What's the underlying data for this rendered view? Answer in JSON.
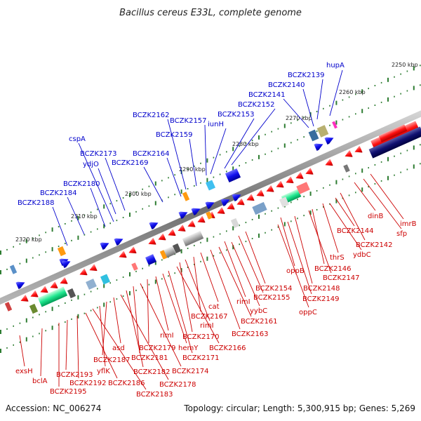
{
  "title": "Bacillus cereus E33L, complete genome",
  "footer": {
    "accession": "Accession: NC_006274",
    "stats": "Topology: circular; Length: 5,300,915 bp; Genes: 5,269"
  },
  "colors": {
    "backbone": "#8a8a8a",
    "forward_label": "#0000cc",
    "reverse_label": "#cc0000",
    "tick": "#2e7d32"
  },
  "scale_labels": [
    "2250 kbp",
    "2260 kbp",
    "2270 kbp",
    "2280 kbp",
    "2290 kbp",
    "2300 kbp",
    "2310 kbp",
    "2320 kbp"
  ],
  "forward_genes": [
    "hupA",
    "BCZK2139",
    "BCZK2140",
    "BCZK2141",
    "BCZK2152",
    "BCZK2153",
    "iunH",
    "BCZK2157",
    "BCZK2159",
    "BCZK2162",
    "BCZK2164",
    "BCZK2169",
    "BCZK2173",
    "ydjO",
    "cspA",
    "BCZK2180",
    "BCZK2184",
    "BCZK2188"
  ],
  "reverse_genes": [
    "imrB",
    "sfp",
    "dinB",
    "BCZK2142",
    "BCZK2144",
    "ydbC",
    "thrS",
    "BCZK2146",
    "BCZK2147",
    "oppB",
    "BCZK2148",
    "BCZK2149",
    "oppC",
    "BCZK2154",
    "BCZK2155",
    "rimI",
    "yybC",
    "BCZK2161",
    "BCZK2163",
    "cat",
    "BCZK2167",
    "rimI",
    "BCZK2170",
    "BCZK2166",
    "BCZK2171",
    "hemY",
    "rimI",
    "BCZK2179",
    "BCZK2174",
    "BCZK2181",
    "BCZK2182",
    "BCZK2178",
    "asd",
    "BCZK2187",
    "yflK",
    "BCZK2183",
    "BCZK2186",
    "BCZK2192",
    "BCZK2193",
    "BCZK2195",
    "bclA",
    "exsH"
  ]
}
